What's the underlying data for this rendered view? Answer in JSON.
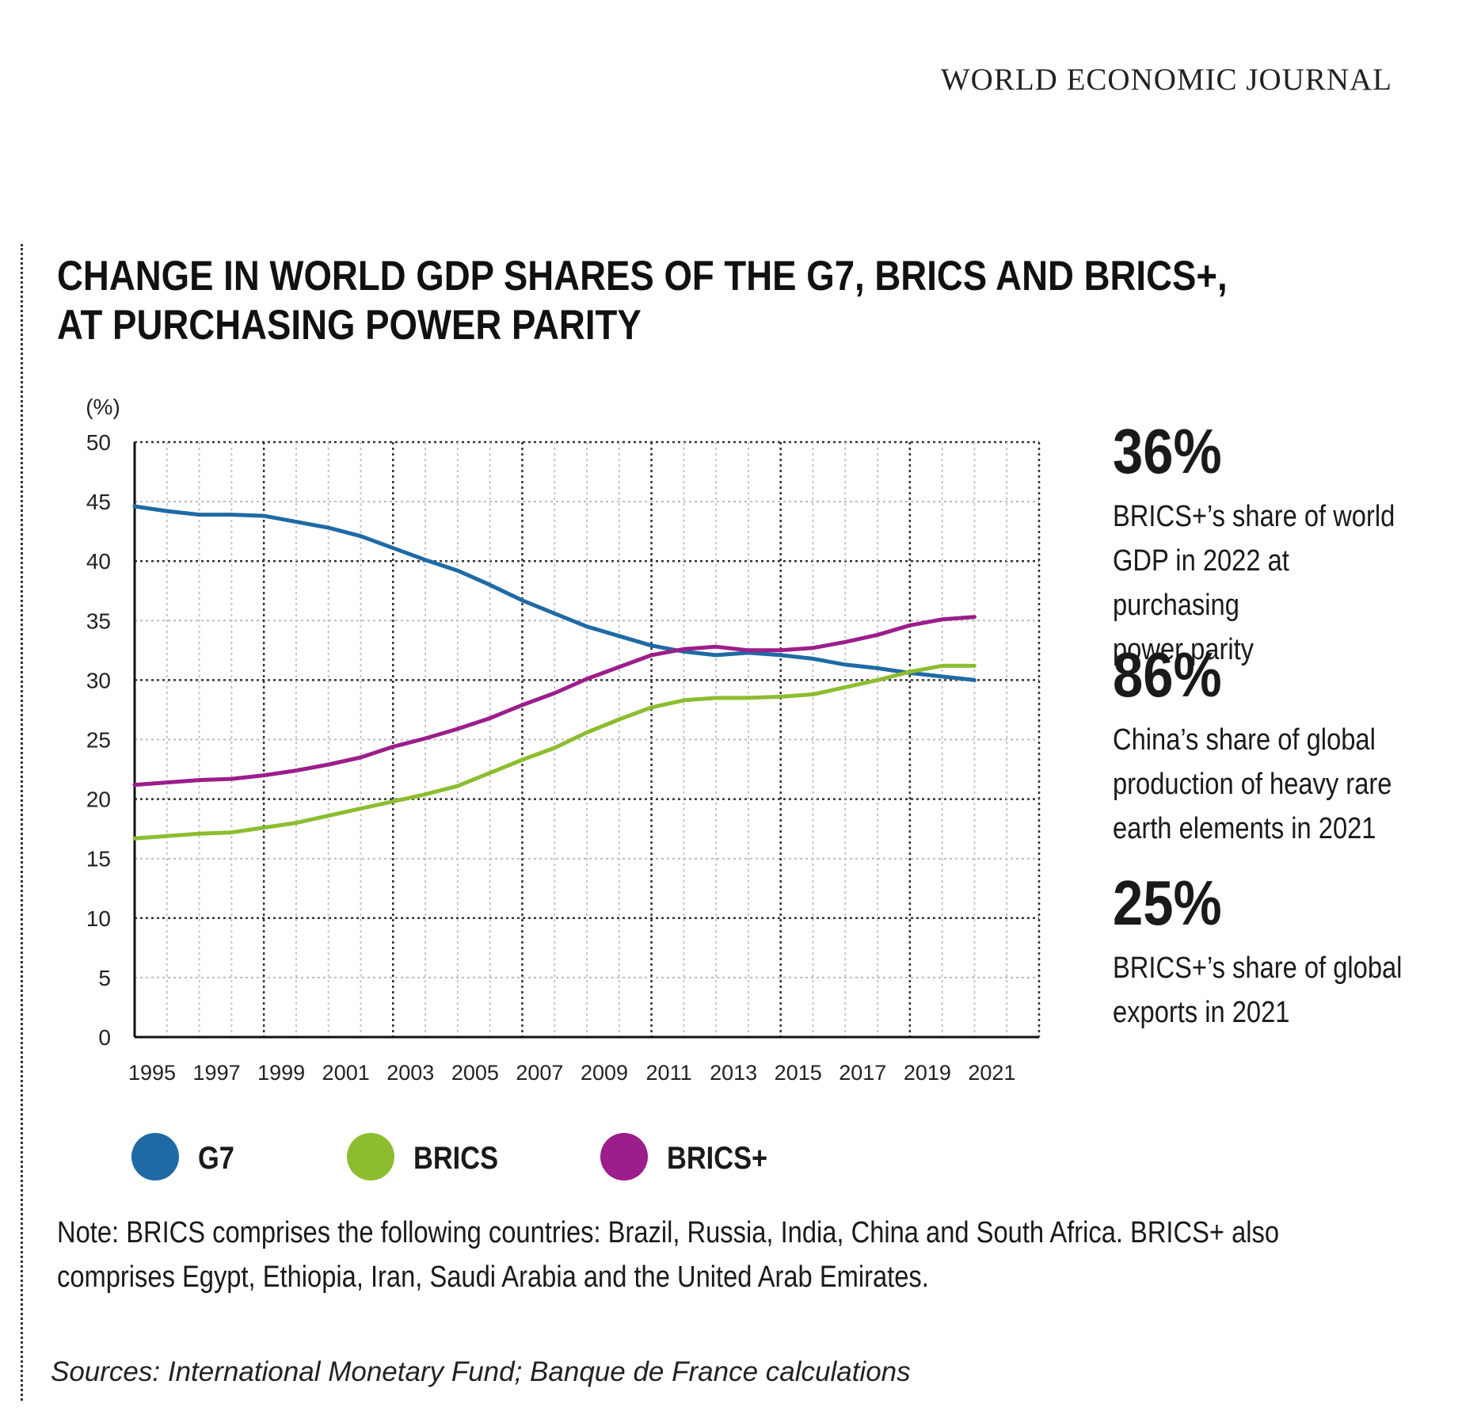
{
  "header": {
    "masthead": "WORLD ECONOMIC JOURNAL"
  },
  "title": {
    "line1": "CHANGE IN WORLD GDP SHARES OF THE G7, BRICS AND BRICS+,",
    "line2": "AT PURCHASING POWER PARITY"
  },
  "chart_data": {
    "type": "line",
    "title": "CHANGE IN WORLD GDP SHARES OF THE G7, BRICS AND BRICS+, AT PURCHASING POWER PARITY",
    "unit_label": "(%)",
    "ylim": [
      0,
      50
    ],
    "y_ticks": [
      0,
      5,
      10,
      15,
      20,
      25,
      30,
      35,
      40,
      45,
      50
    ],
    "xlim": [
      1995,
      2023
    ],
    "x_tick_labels": [
      "1995",
      "1997",
      "1999",
      "2001",
      "2003",
      "2005",
      "2007",
      "2009",
      "2011",
      "2013",
      "2015",
      "2017",
      "2019",
      "2021"
    ],
    "x": [
      1995,
      1996,
      1997,
      1998,
      1999,
      2000,
      2001,
      2002,
      2003,
      2004,
      2005,
      2006,
      2007,
      2008,
      2009,
      2010,
      2011,
      2012,
      2013,
      2014,
      2015,
      2016,
      2017,
      2018,
      2019,
      2020,
      2021
    ],
    "grid": true,
    "legend_position": "bottom",
    "series": [
      {
        "name": "G7",
        "color": "#1f6aa5",
        "values": [
          44.6,
          44.2,
          43.9,
          43.9,
          43.8,
          43.3,
          42.8,
          42.1,
          41.1,
          40.1,
          39.2,
          38.0,
          36.7,
          35.6,
          34.5,
          33.7,
          32.9,
          32.4,
          32.1,
          32.3,
          32.1,
          31.8,
          31.3,
          31.0,
          30.6,
          30.3,
          30.0
        ]
      },
      {
        "name": "BRICS",
        "color": "#8cbd2f",
        "values": [
          16.7,
          16.9,
          17.1,
          17.2,
          17.6,
          18.0,
          18.6,
          19.2,
          19.8,
          20.4,
          21.1,
          22.2,
          23.3,
          24.3,
          25.6,
          26.7,
          27.7,
          28.3,
          28.5,
          28.5,
          28.6,
          28.8,
          29.4,
          30.0,
          30.7,
          31.2,
          31.2
        ]
      },
      {
        "name": "BRICS+",
        "color": "#9c1d8b",
        "values": [
          21.2,
          21.4,
          21.6,
          21.7,
          22.0,
          22.4,
          22.9,
          23.5,
          24.4,
          25.1,
          25.9,
          26.8,
          27.9,
          28.9,
          30.1,
          31.1,
          32.1,
          32.6,
          32.8,
          32.5,
          32.5,
          32.7,
          33.2,
          33.8,
          34.6,
          35.1,
          35.3
        ]
      }
    ]
  },
  "stats": [
    {
      "value": "36%",
      "text": "BRICS+’s share of world\nGDP in 2022 at purchasing\npower parity"
    },
    {
      "value": "86%",
      "text": "China’s share of global\nproduction of heavy rare\nearth elements in 2021"
    },
    {
      "value": "25%",
      "text": "BRICS+’s share of global\nexports in 2021"
    }
  ],
  "legend": [
    {
      "label": "G7",
      "color": "#1f6aa5"
    },
    {
      "label": "BRICS",
      "color": "#8cbd2f"
    },
    {
      "label": "BRICS+",
      "color": "#9c1d8b"
    }
  ],
  "note": "Note: BRICS comprises the following countries: Brazil, Russia, India, China and South Africa. BRICS+ also comprises Egypt, Ethiopia, Iran, Saudi Arabia and the United Arab Emirates.",
  "sources": "Sources: International Monetary Fund; Banque de France calculations"
}
